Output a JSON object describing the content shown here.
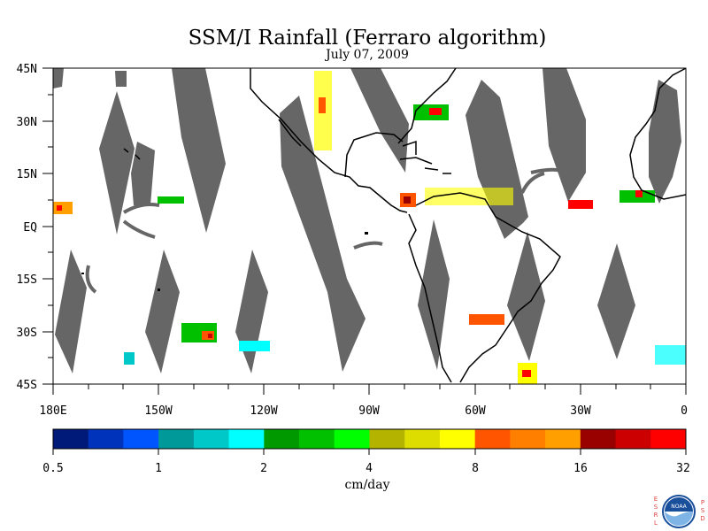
{
  "title": "SSM/I Rainfall (Ferraro algorithm)",
  "date": "July 07, 2009",
  "lat_labels": [
    "45N",
    "30N",
    "15N",
    "EQ",
    "15S",
    "30S",
    "45S"
  ],
  "lon_labels": [
    "180E",
    "150W",
    "120W",
    "90W",
    "60W",
    "30W",
    "0"
  ],
  "colorbar": {
    "unit": "cm/day",
    "tick_labels": [
      "0.5",
      "1",
      "2",
      "4",
      "8",
      "16",
      "32"
    ],
    "colors": [
      "#001a7a",
      "#0033bb",
      "#0055ff",
      "#009999",
      "#00c8c8",
      "#00ffff",
      "#009900",
      "#00c000",
      "#00ff00",
      "#b3b300",
      "#dddd00",
      "#ffff00",
      "#ff5500",
      "#ff8000",
      "#ffa000",
      "#990000",
      "#cc0000",
      "#ff0000"
    ]
  },
  "map_colors": {
    "no_data": "#666666",
    "ocean": "#ffffff",
    "coast": "#000000"
  },
  "logo": {
    "name": "NOAA",
    "left_letters": "ESRL",
    "right_letters": "PSD"
  }
}
